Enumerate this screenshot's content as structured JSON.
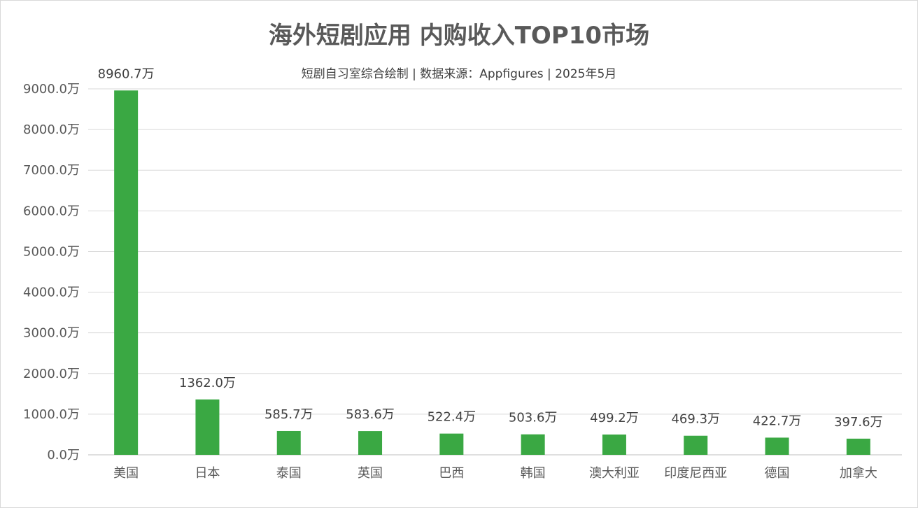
{
  "chart_data": {
    "type": "bar",
    "title": "海外短剧应用 内购收入TOP10市场",
    "subtitle": "短剧自习室综合绘制 | 数据来源：Appfigures | 2025年5月",
    "categories": [
      "美国",
      "日本",
      "泰国",
      "英国",
      "巴西",
      "韩国",
      "澳大利亚",
      "印度尼西亚",
      "德国",
      "加拿大"
    ],
    "values": [
      8960.7,
      1362.0,
      585.7,
      583.6,
      522.4,
      503.6,
      499.2,
      469.3,
      422.7,
      397.6
    ],
    "value_labels": [
      "8960.7万",
      "1362.0万",
      "585.7万",
      "583.6万",
      "522.4万",
      "503.6万",
      "499.2万",
      "469.3万",
      "422.7万",
      "397.6万"
    ],
    "y_ticks": [
      0,
      1000,
      2000,
      3000,
      4000,
      5000,
      6000,
      7000,
      8000,
      9000
    ],
    "y_tick_labels": [
      "0.0万",
      "1000.0万",
      "2000.0万",
      "3000.0万",
      "4000.0万",
      "5000.0万",
      "6000.0万",
      "7000.0万",
      "8000.0万",
      "9000.0万"
    ],
    "ylim": [
      0,
      9000
    ],
    "xlabel": "",
    "ylabel": "",
    "grid": true,
    "bar_color": "#3aa843"
  }
}
